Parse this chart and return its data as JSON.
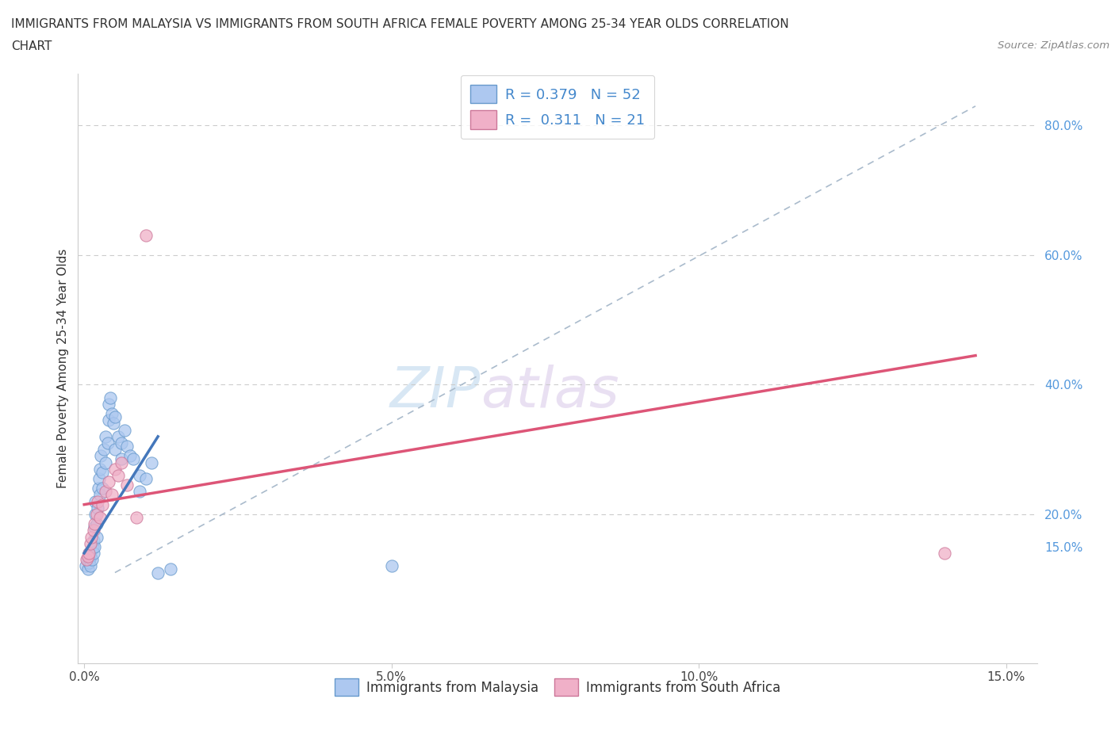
{
  "title_line1": "IMMIGRANTS FROM MALAYSIA VS IMMIGRANTS FROM SOUTH AFRICA FEMALE POVERTY AMONG 25-34 YEAR OLDS CORRELATION",
  "title_line2": "CHART",
  "source_text": "Source: ZipAtlas.com",
  "ylabel": "Female Poverty Among 25-34 Year Olds",
  "watermark_zip": "ZIP",
  "watermark_atlas": "atlas",
  "legend_R1": "R = 0.379",
  "legend_N1": "N = 52",
  "legend_R2": "R = 0.311",
  "legend_N2": "N = 21",
  "color_malaysia_fill": "#adc8f0",
  "color_malaysia_edge": "#6699cc",
  "color_sa_fill": "#f0b0c8",
  "color_sa_edge": "#cc7799",
  "color_line_malaysia": "#4477bb",
  "color_line_sa": "#dd5577",
  "color_dashed": "#aabbcc",
  "color_grid": "#cccccc",
  "color_ytick": "#5599dd",
  "xlim_min": -0.001,
  "xlim_max": 0.155,
  "ylim_min": -0.03,
  "ylim_max": 0.88,
  "malaysia_x": [
    0.0003,
    0.0005,
    0.0006,
    0.0007,
    0.0008,
    0.0009,
    0.001,
    0.001,
    0.0012,
    0.0013,
    0.0014,
    0.0015,
    0.0015,
    0.0016,
    0.0017,
    0.0018,
    0.0018,
    0.002,
    0.002,
    0.0022,
    0.0023,
    0.0024,
    0.0025,
    0.0026,
    0.0027,
    0.003,
    0.003,
    0.0032,
    0.0034,
    0.0035,
    0.0038,
    0.004,
    0.004,
    0.0042,
    0.0045,
    0.0048,
    0.005,
    0.005,
    0.0055,
    0.006,
    0.006,
    0.0065,
    0.007,
    0.0075,
    0.008,
    0.009,
    0.009,
    0.01,
    0.011,
    0.012,
    0.014,
    0.05
  ],
  "malaysia_y": [
    0.12,
    0.13,
    0.115,
    0.125,
    0.14,
    0.13,
    0.135,
    0.12,
    0.145,
    0.13,
    0.15,
    0.14,
    0.16,
    0.15,
    0.18,
    0.2,
    0.22,
    0.165,
    0.185,
    0.21,
    0.24,
    0.255,
    0.27,
    0.23,
    0.29,
    0.24,
    0.265,
    0.3,
    0.28,
    0.32,
    0.31,
    0.345,
    0.37,
    0.38,
    0.355,
    0.34,
    0.35,
    0.3,
    0.32,
    0.31,
    0.285,
    0.33,
    0.305,
    0.29,
    0.285,
    0.26,
    0.235,
    0.255,
    0.28,
    0.11,
    0.115,
    0.12
  ],
  "south_africa_x": [
    0.0004,
    0.0006,
    0.0008,
    0.001,
    0.0012,
    0.0015,
    0.0017,
    0.002,
    0.0022,
    0.0025,
    0.003,
    0.0035,
    0.004,
    0.0045,
    0.005,
    0.0055,
    0.006,
    0.007,
    0.0085,
    0.01,
    0.14
  ],
  "south_africa_y": [
    0.13,
    0.135,
    0.14,
    0.155,
    0.165,
    0.175,
    0.185,
    0.2,
    0.22,
    0.195,
    0.215,
    0.235,
    0.25,
    0.23,
    0.27,
    0.26,
    0.28,
    0.245,
    0.195,
    0.63,
    0.14
  ],
  "blue_line_x": [
    0.0,
    0.012
  ],
  "blue_line_y": [
    0.14,
    0.32
  ],
  "pink_line_x": [
    0.0,
    0.145
  ],
  "pink_line_y": [
    0.215,
    0.445
  ],
  "dash_line_x": [
    0.005,
    0.145
  ],
  "dash_line_y": [
    0.11,
    0.83
  ]
}
